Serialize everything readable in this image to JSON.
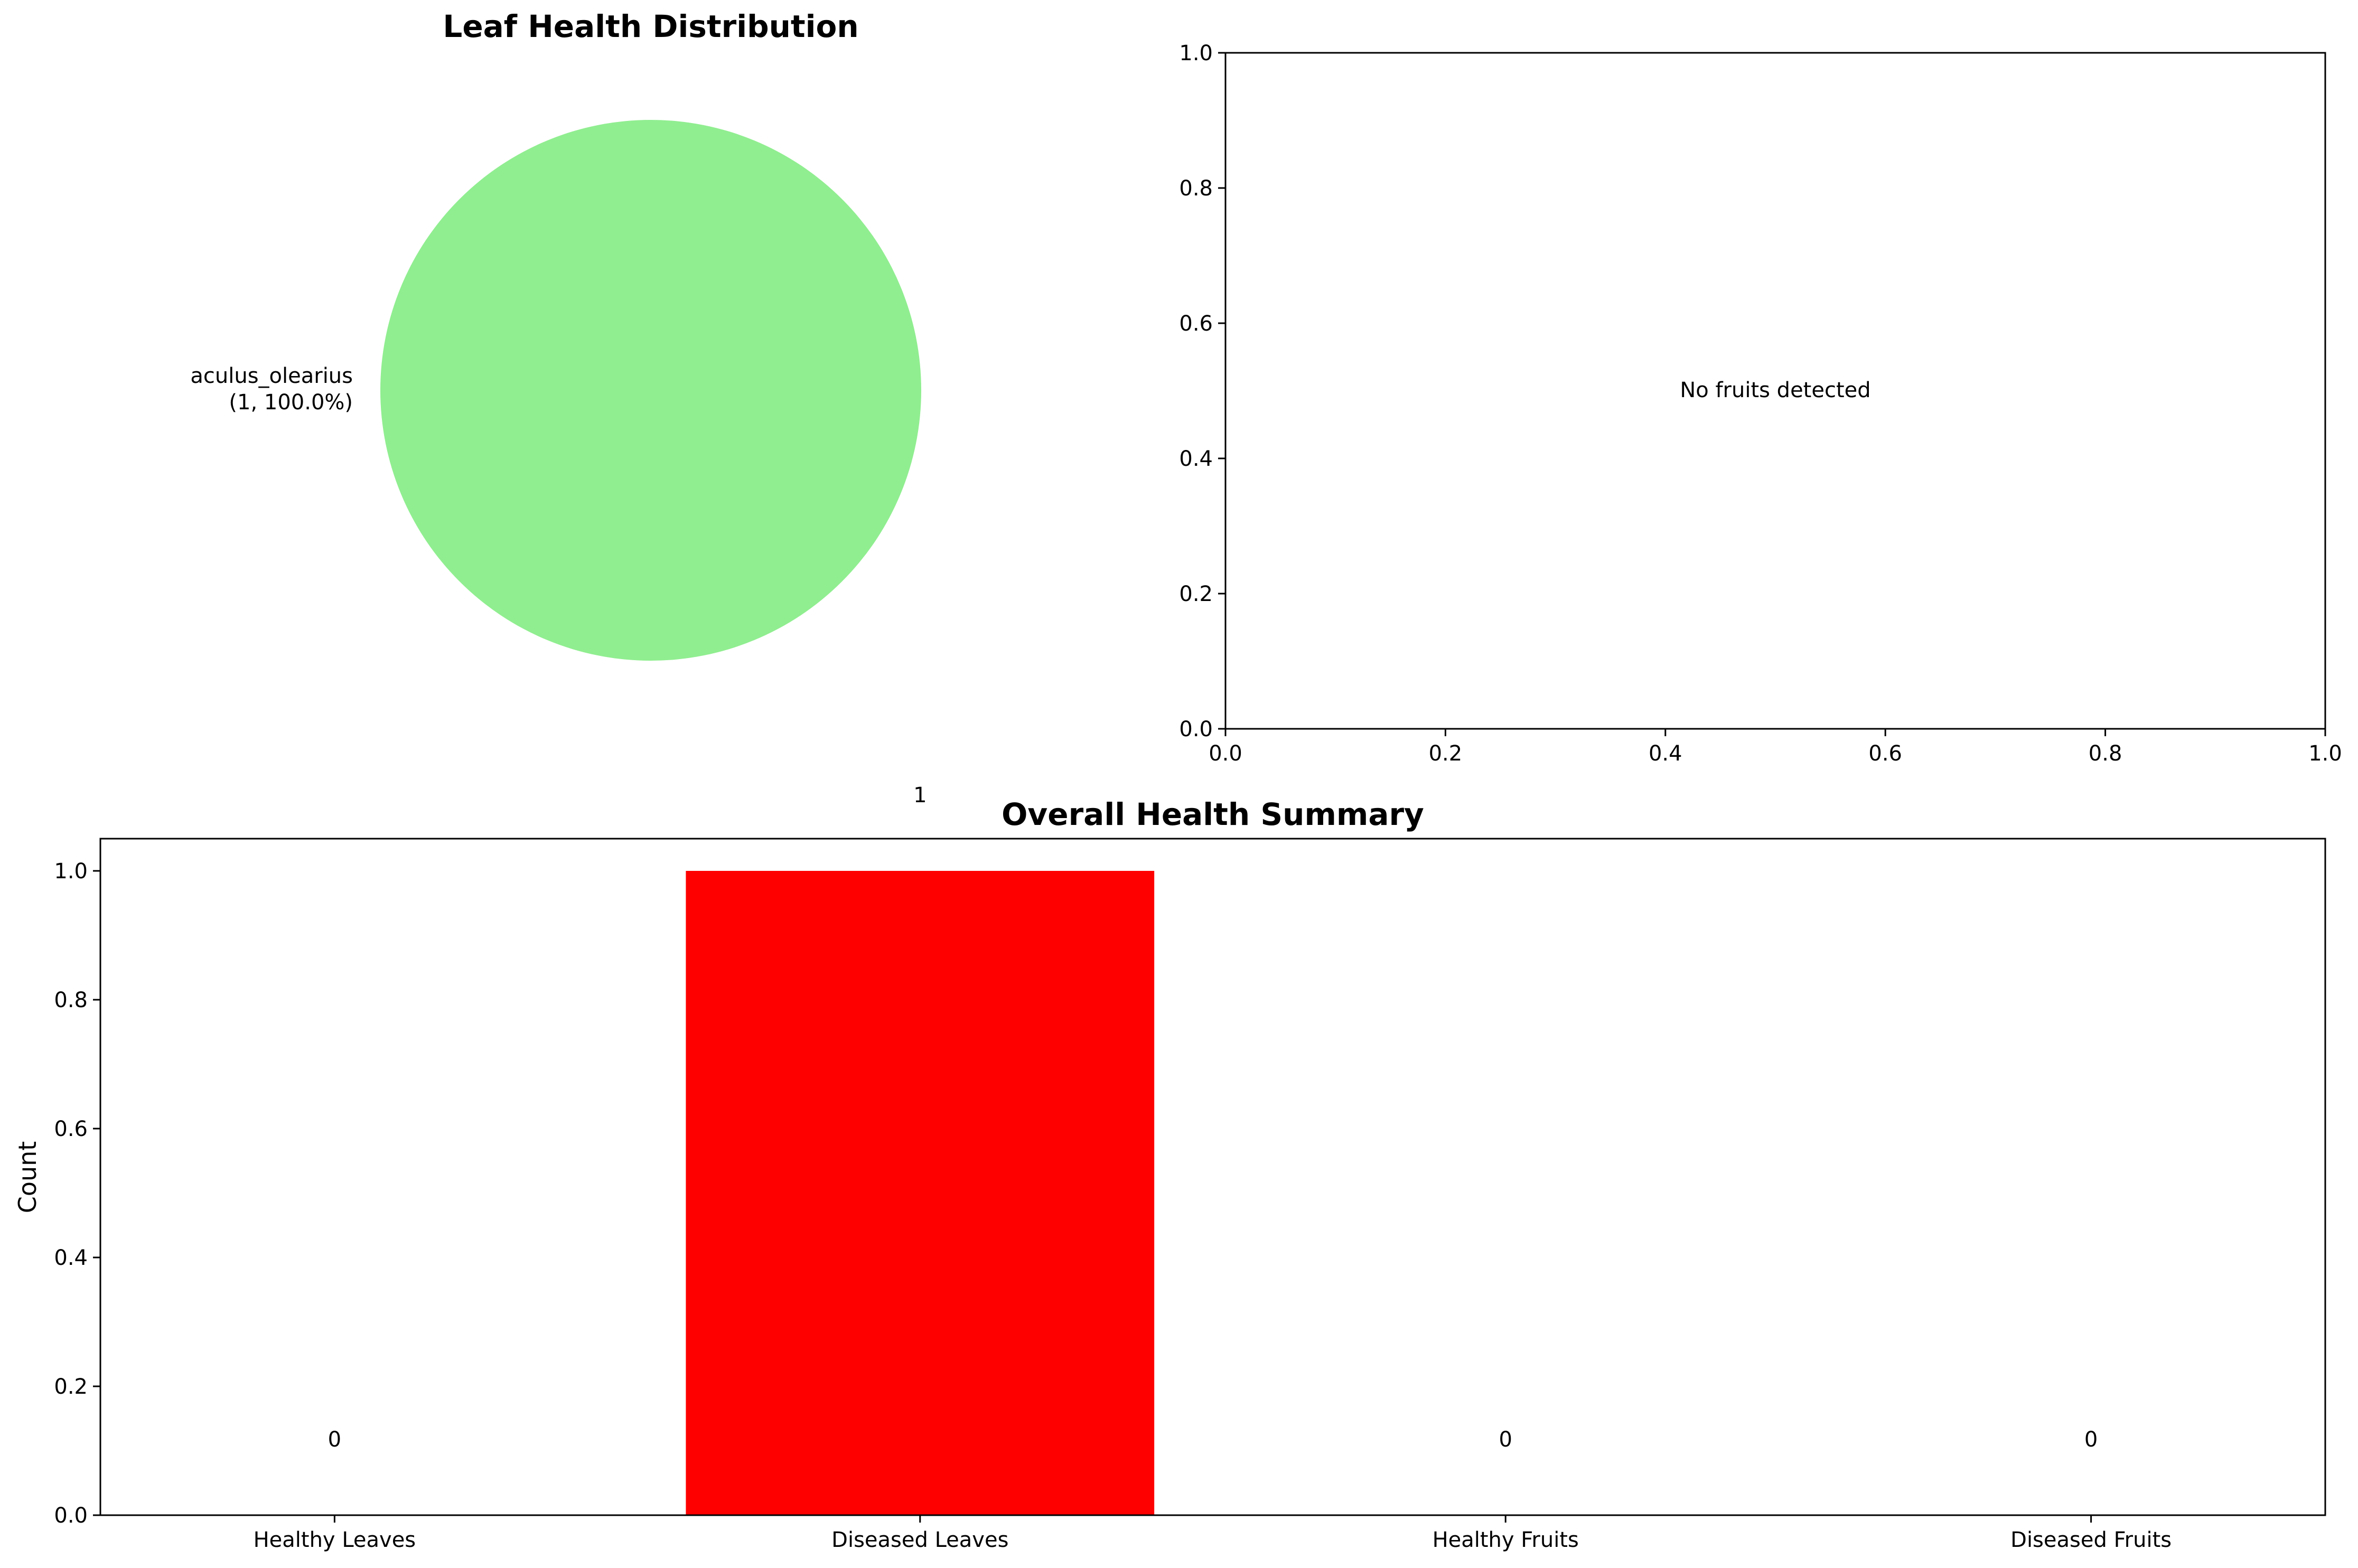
{
  "chart_data": [
    {
      "type": "pie",
      "title": "Leaf Health Distribution",
      "slices": [
        {
          "label": "aculus_olearius",
          "value": 1,
          "autopct": "(1, 100.0%)",
          "color": "#90EE90"
        }
      ]
    },
    {
      "type": "scatter",
      "title": "",
      "xlim": [
        0.0,
        1.0
      ],
      "ylim": [
        0.0,
        1.0
      ],
      "x_ticks": [
        "0.0",
        "0.2",
        "0.4",
        "0.6",
        "0.8",
        "1.0"
      ],
      "y_ticks": [
        "0.0",
        "0.2",
        "0.4",
        "0.6",
        "0.8",
        "1.0"
      ],
      "note": "No fruits detected",
      "series": []
    },
    {
      "type": "bar",
      "title": "Overall Health Summary",
      "ylabel": "Count",
      "xlabel": "",
      "categories": [
        "Healthy Leaves",
        "Diseased Leaves",
        "Healthy Fruits",
        "Diseased Fruits"
      ],
      "values": [
        0,
        1,
        0,
        0
      ],
      "value_labels": [
        "0",
        "1",
        "0",
        "0"
      ],
      "colors": [
        "#90EE90",
        "#FF0000",
        "#90EE90",
        "#FF0000"
      ],
      "ylim": [
        0.0,
        1.05
      ],
      "y_ticks": [
        "0.0",
        "0.2",
        "0.4",
        "0.6",
        "0.8",
        "1.0"
      ]
    }
  ]
}
